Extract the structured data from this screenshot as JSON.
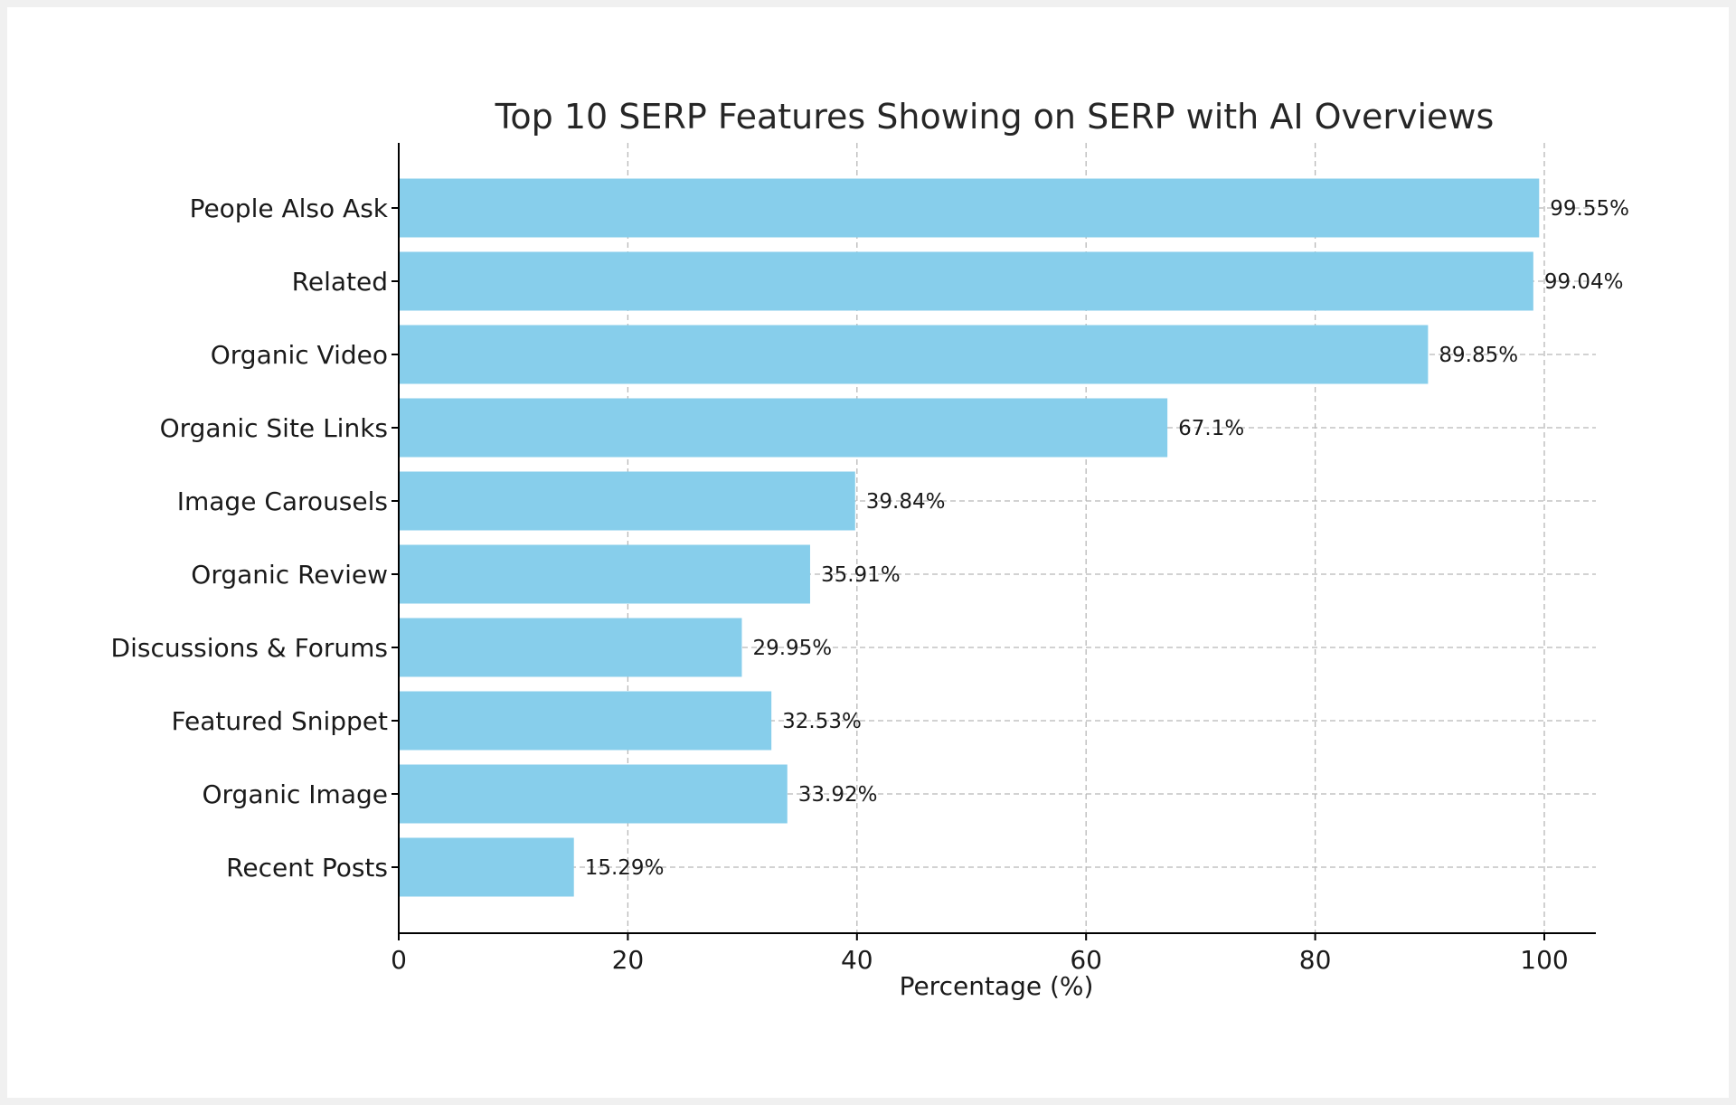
{
  "chart_data": {
    "type": "bar",
    "orientation": "horizontal",
    "title": "Top 10 SERP Features Showing on SERP with AI Overviews",
    "xlabel": "Percentage (%)",
    "ylabel": "",
    "categories": [
      "People Also Ask",
      "Related",
      "Organic Video",
      "Organic Site Links",
      "Image Carousels",
      "Organic Review",
      "Discussions & Forums",
      "Featured Snippet",
      "Organic Image",
      "Recent Posts"
    ],
    "values": [
      99.55,
      99.04,
      89.85,
      67.1,
      39.84,
      35.91,
      29.95,
      32.53,
      33.92,
      15.29
    ],
    "value_labels": [
      "99.55%",
      "99.04%",
      "89.85%",
      "67.1%",
      "39.84%",
      "35.91%",
      "29.95%",
      "32.53%",
      "33.92%",
      "15.29%"
    ],
    "xticks": [
      0,
      20,
      40,
      60,
      80,
      100
    ],
    "xlim": [
      0,
      104.5
    ],
    "grid": true,
    "bar_color": "#87ceeb",
    "grid_color": "#b8b8b8"
  }
}
